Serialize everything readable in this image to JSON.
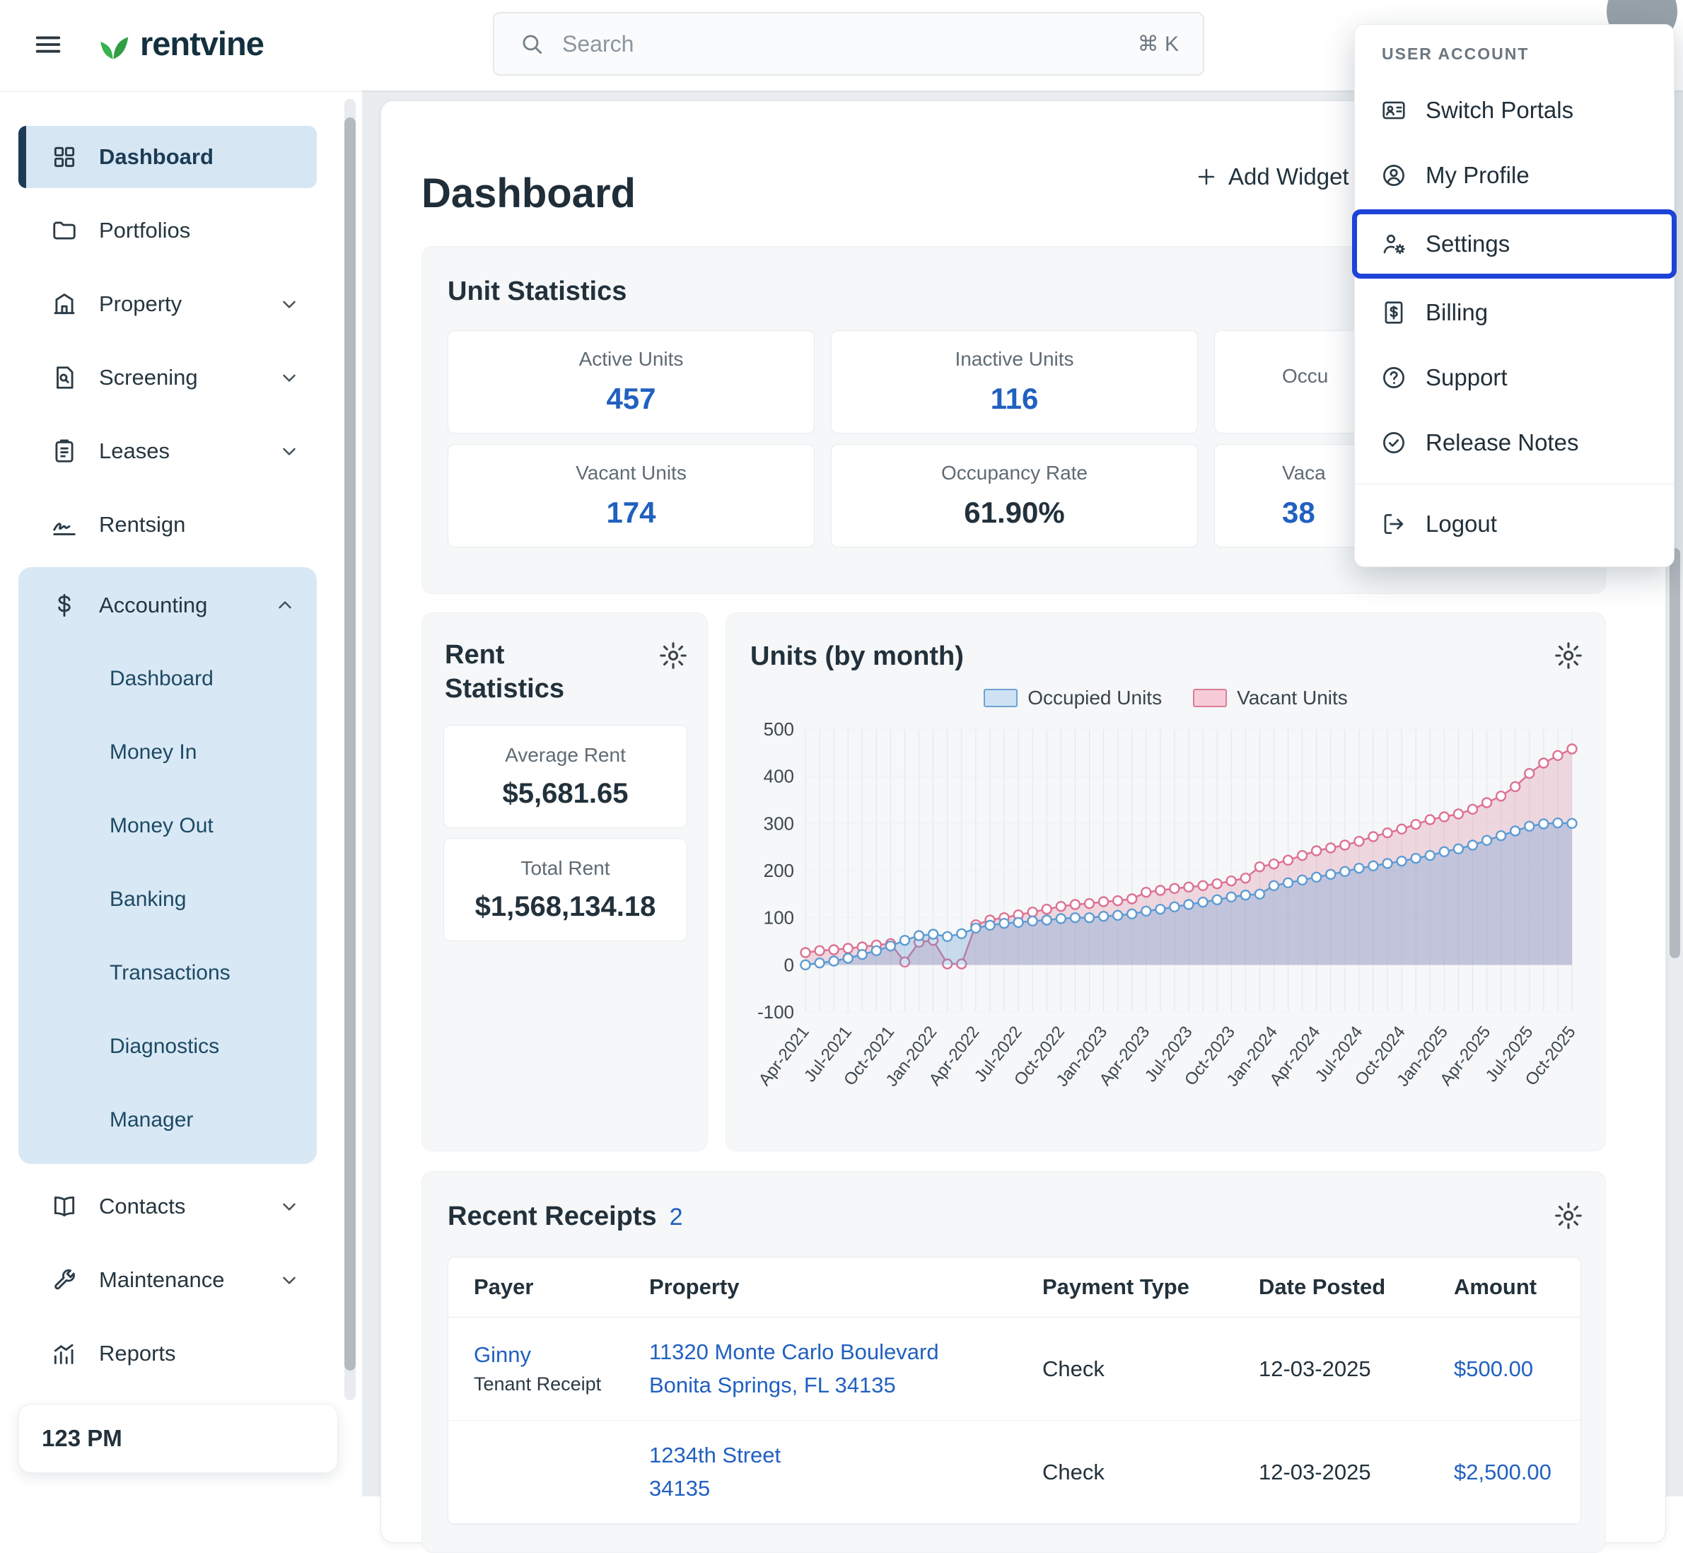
{
  "colors": {
    "accent_blue": "#2160c0",
    "highlight_border": "#1d43d8",
    "brand_green": "#2f9e44",
    "active_item_bg": "#d7e6f3"
  },
  "topbar": {
    "brand": "rentvine",
    "search_placeholder": "Search",
    "search_shortcut": "⌘ K"
  },
  "user_menu": {
    "header": "USER ACCOUNT",
    "items": [
      {
        "label": "Switch Portals"
      },
      {
        "label": "My Profile"
      },
      {
        "label": "Settings",
        "highlighted": true
      },
      {
        "label": "Billing"
      },
      {
        "label": "Support"
      },
      {
        "label": "Release Notes"
      },
      {
        "label": "Logout"
      }
    ]
  },
  "sidebar": {
    "items": [
      {
        "label": "Dashboard",
        "active": true
      },
      {
        "label": "Portfolios"
      },
      {
        "label": "Property",
        "expandable": true
      },
      {
        "label": "Screening",
        "expandable": true
      },
      {
        "label": "Leases",
        "expandable": true
      },
      {
        "label": "Rentsign"
      },
      {
        "label": "Accounting",
        "expandable": true,
        "expanded": true
      },
      {
        "label": "Contacts",
        "expandable": true
      },
      {
        "label": "Maintenance",
        "expandable": true
      },
      {
        "label": "Reports"
      }
    ],
    "accounting_children": [
      {
        "label": "Dashboard"
      },
      {
        "label": "Money In"
      },
      {
        "label": "Money Out"
      },
      {
        "label": "Banking"
      },
      {
        "label": "Transactions"
      },
      {
        "label": "Diagnostics"
      },
      {
        "label": "Manager"
      }
    ],
    "clock": "123 PM"
  },
  "main": {
    "title": "Dashboard",
    "add_widget_label": "Add Widget",
    "unit_statistics": {
      "title": "Unit Statistics",
      "cards": [
        {
          "label": "Active Units",
          "value": "457"
        },
        {
          "label": "Inactive Units",
          "value": "116"
        },
        {
          "label": "Occu",
          "value": "",
          "note": "partially hidden by open menu"
        },
        {
          "label": "Vacant Units",
          "value": "174"
        },
        {
          "label": "Occupancy Rate",
          "value": "61.90%"
        },
        {
          "label": "Vaca",
          "value": "38",
          "note": "partially hidden by open menu"
        }
      ]
    },
    "rent_statistics": {
      "title": "Rent Statistics",
      "cards": [
        {
          "label": "Average Rent",
          "value": "$5,681.65"
        },
        {
          "label": "Total Rent",
          "value": "$1,568,134.18"
        }
      ]
    },
    "recent_receipts": {
      "title": "Recent Receipts",
      "count": "2",
      "columns": [
        "Payer",
        "Property",
        "Payment Type",
        "Date Posted",
        "Amount"
      ],
      "rows": [
        {
          "payer": "Ginny",
          "payer_sub": "Tenant Receipt",
          "property_line1": "11320 Monte Carlo Boulevard",
          "property_line2": "Bonita Springs, FL 34135",
          "payment_type": "Check",
          "date_posted": "12-03-2025",
          "amount": "$500.00"
        },
        {
          "payer": "",
          "payer_sub": "",
          "property_line1": "1234th Street",
          "property_line2": "34135",
          "payment_type": "Check",
          "date_posted": "12-03-2025",
          "amount": "$2,500.00"
        }
      ]
    }
  },
  "chart_data": {
    "type": "area",
    "title": "Units (by month)",
    "legend_position": "top",
    "grid": "vertical-monthly",
    "ylim": [
      -100,
      500
    ],
    "yticks": [
      500,
      400,
      300,
      200,
      100,
      0,
      -100
    ],
    "x": [
      "Apr-2021",
      "May-2021",
      "Jun-2021",
      "Jul-2021",
      "Aug-2021",
      "Sep-2021",
      "Oct-2021",
      "Nov-2021",
      "Dec-2021",
      "Jan-2022",
      "Feb-2022",
      "Mar-2022",
      "Apr-2022",
      "May-2022",
      "Jun-2022",
      "Jul-2022",
      "Aug-2022",
      "Sep-2022",
      "Oct-2022",
      "Nov-2022",
      "Dec-2022",
      "Jan-2023",
      "Feb-2023",
      "Mar-2023",
      "Apr-2023",
      "May-2023",
      "Jun-2023",
      "Jul-2023",
      "Aug-2023",
      "Sep-2023",
      "Oct-2023",
      "Nov-2023",
      "Dec-2023",
      "Jan-2024",
      "Feb-2024",
      "Mar-2024",
      "Apr-2024",
      "May-2024",
      "Jun-2024",
      "Jul-2024",
      "Aug-2024",
      "Sep-2024",
      "Oct-2024",
      "Nov-2024",
      "Dec-2024",
      "Jan-2025",
      "Feb-2025",
      "Mar-2025",
      "Apr-2025",
      "May-2025",
      "Jun-2025",
      "Jul-2025",
      "Aug-2025",
      "Sep-2025",
      "Oct-2025"
    ],
    "series": [
      {
        "name": "Occupied Units",
        "color": "#5e9bd3",
        "fill": "rgba(94,155,211,0.30)",
        "values": [
          0,
          4,
          8,
          14,
          22,
          30,
          40,
          52,
          62,
          65,
          60,
          66,
          78,
          84,
          88,
          90,
          93,
          95,
          98,
          100,
          100,
          103,
          105,
          108,
          114,
          118,
          123,
          128,
          133,
          138,
          144,
          148,
          150,
          168,
          174,
          180,
          186,
          192,
          198,
          205,
          210,
          215,
          220,
          226,
          232,
          240,
          246,
          254,
          264,
          274,
          284,
          294,
          299,
          301,
          300
        ]
      },
      {
        "name": "Vacant Units",
        "color": "#dd7292",
        "fill": "rgba(221,114,146,0.25)",
        "values": [
          26,
          30,
          32,
          35,
          38,
          42,
          45,
          6,
          48,
          52,
          2,
          2,
          85,
          95,
          100,
          106,
          112,
          118,
          124,
          128,
          130,
          134,
          136,
          140,
          154,
          158,
          162,
          165,
          168,
          172,
          178,
          184,
          208,
          214,
          222,
          232,
          242,
          248,
          254,
          262,
          272,
          280,
          288,
          298,
          308,
          314,
          320,
          330,
          344,
          358,
          378,
          406,
          428,
          444,
          458
        ]
      }
    ]
  }
}
